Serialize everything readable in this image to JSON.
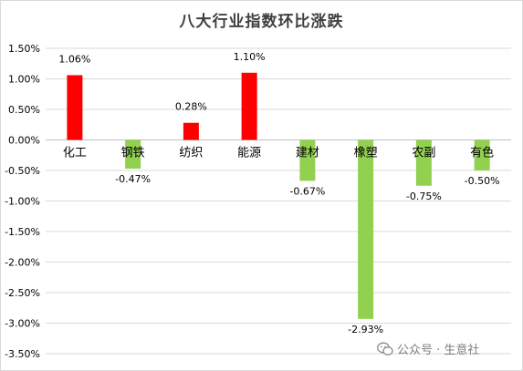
{
  "chart_data": {
    "type": "bar",
    "title": "八大行业指数环比涨跌",
    "categories": [
      "化工",
      "钢铁",
      "纺织",
      "能源",
      "建材",
      "橡塑",
      "农副",
      "有色"
    ],
    "values": [
      1.06,
      -0.47,
      0.28,
      1.1,
      -0.67,
      -2.93,
      -0.75,
      -0.5
    ],
    "value_labels": [
      "1.06%",
      "-0.47%",
      "0.28%",
      "1.10%",
      "-0.67%",
      "-2.93%",
      "-0.75%",
      "-0.50%"
    ],
    "ylim": [
      -3.5,
      1.5
    ],
    "yticks": [
      1.5,
      1.0,
      0.5,
      0.0,
      -0.5,
      -1.0,
      -1.5,
      -2.0,
      -2.5,
      -3.0,
      -3.5
    ],
    "ytick_labels": [
      "1.50%",
      "1.00%",
      "0.50%",
      "0.00%",
      "-0.50%",
      "-1.00%",
      "-1.50%",
      "-2.00%",
      "-2.50%",
      "-3.00%",
      "-3.50%"
    ],
    "xlabel": "",
    "ylabel": "",
    "grid": true,
    "legend": "none",
    "colors": {
      "positive": "#ff0000",
      "negative": "#92d050",
      "grid": "#d9d9d9",
      "text": "#000000"
    }
  },
  "watermark": {
    "text": "公众号 · 生意社",
    "icon": "wechat-icon"
  }
}
